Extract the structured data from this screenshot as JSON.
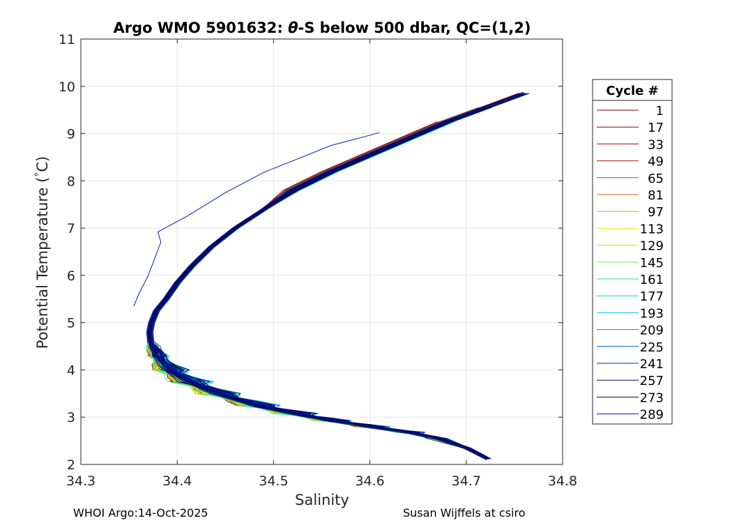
{
  "chart_data": {
    "type": "line",
    "title_prefix": "Argo WMO 5901632: ",
    "title_symbol": "θ",
    "title_suffix": "-S below 500 dbar,  QC=(1,2)",
    "xlabel": "Salinity",
    "ylabel_main": "Potential Temperature (",
    "ylabel_degree": "°",
    "ylabel_unit": "C)",
    "xlim": [
      34.3,
      34.8
    ],
    "ylim": [
      2,
      11
    ],
    "x_ticks": [
      34.3,
      34.4,
      34.5,
      34.6,
      34.7,
      34.8
    ],
    "x_tick_labels": [
      "34.3",
      "34.4",
      "34.5",
      "34.6",
      "34.7",
      "34.8"
    ],
    "y_ticks": [
      2,
      3,
      4,
      5,
      6,
      7,
      8,
      9,
      10,
      11
    ],
    "y_tick_labels": [
      "2",
      "3",
      "4",
      "5",
      "6",
      "7",
      "8",
      "9",
      "10",
      "11"
    ],
    "grid": true,
    "legend": {
      "title": "Cycle #",
      "placement": "right, outside",
      "entries": [
        {
          "label": "1",
          "color": "#7f0000"
        },
        {
          "label": "17",
          "color": "#8f0000"
        },
        {
          "label": "33",
          "color": "#a50000"
        },
        {
          "label": "49",
          "color": "#bf1500"
        },
        {
          "label": "65",
          "color": "#d83a00"
        },
        {
          "label": "81",
          "color": "#e86600"
        },
        {
          "label": "97",
          "color": "#f5a000"
        },
        {
          "label": "113",
          "color": "#f5e800"
        },
        {
          "label": "129",
          "color": "#bff000"
        },
        {
          "label": "145",
          "color": "#6ff040"
        },
        {
          "label": "161",
          "color": "#30ea90"
        },
        {
          "label": "177",
          "color": "#10d0d0"
        },
        {
          "label": "193",
          "color": "#10c0f0"
        },
        {
          "label": "209",
          "color": "#0090d0"
        },
        {
          "label": "225",
          "color": "#0060b8"
        },
        {
          "label": "241",
          "color": "#0030a0"
        },
        {
          "label": "257",
          "color": "#000e70"
        },
        {
          "label": "273",
          "color": "#00085a"
        },
        {
          "label": "289",
          "color": "#0018a0"
        }
      ]
    },
    "representative_profile": {
      "salinity": [
        34.722,
        34.7,
        34.67,
        34.64,
        34.6,
        34.56,
        34.52,
        34.48,
        34.44,
        34.41,
        34.39,
        34.378,
        34.372,
        34.371,
        34.373,
        34.378,
        34.388,
        34.4,
        34.415,
        34.435,
        34.46,
        34.49,
        34.52,
        34.56,
        34.6,
        34.64,
        34.68,
        34.72,
        34.76
      ],
      "temperature": [
        2.12,
        2.35,
        2.55,
        2.68,
        2.8,
        2.93,
        3.08,
        3.25,
        3.5,
        3.75,
        4.0,
        4.3,
        4.6,
        4.8,
        5.0,
        5.25,
        5.5,
        5.85,
        6.2,
        6.6,
        7.0,
        7.4,
        7.8,
        8.2,
        8.55,
        8.9,
        9.25,
        9.55,
        9.85
      ]
    },
    "outlier_profile": {
      "salinity": [
        34.61,
        34.56,
        34.49,
        34.45,
        34.41,
        34.38,
        34.383,
        34.37,
        34.36,
        34.355
      ],
      "temperature": [
        9.02,
        8.75,
        8.18,
        7.75,
        7.25,
        6.92,
        6.7,
        6.0,
        5.6,
        5.35
      ]
    },
    "n_profiles_drawn": 130,
    "seed": 5901632
  },
  "footer": {
    "left": "WHOI Argo:14-Oct-2025",
    "right": "Susan Wijffels at csiro"
  }
}
